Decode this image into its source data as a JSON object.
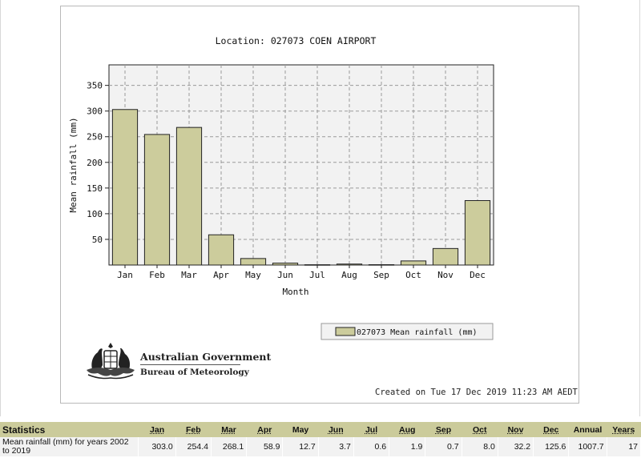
{
  "chart_data": {
    "type": "bar",
    "title": "Location: 027073 COEN AIRPORT",
    "xlabel": "Month",
    "ylabel": "Mean rainfall (mm)",
    "categories": [
      "Jan",
      "Feb",
      "Mar",
      "Apr",
      "May",
      "Jun",
      "Jul",
      "Aug",
      "Sep",
      "Oct",
      "Nov",
      "Dec"
    ],
    "series": [
      {
        "name": "027073 Mean rainfall (mm)",
        "values": [
          303.0,
          254.4,
          268.1,
          58.9,
          12.7,
          3.7,
          0.6,
          1.9,
          0.7,
          8.0,
          32.2,
          125.6
        ],
        "color": "#cccc9c"
      }
    ],
    "ylim": [
      0,
      390
    ],
    "yticks": [
      50,
      100,
      150,
      200,
      250,
      300,
      350
    ],
    "grid": true,
    "legend": "bottom-right",
    "plot_background": "#f2f2f2"
  },
  "logo": {
    "line1": "Australian Government",
    "line2": "Bureau of Meteorology",
    "emblem_icon": "coat-of-arms-icon"
  },
  "created": "Created on Tue 17 Dec 2019 11:23 AM AEDT",
  "stats": {
    "header": "Statistics",
    "columns": [
      "Jan",
      "Feb",
      "Mar",
      "Apr",
      "May",
      "Jun",
      "Jul",
      "Aug",
      "Sep",
      "Oct",
      "Nov",
      "Dec",
      "Annual",
      "Years"
    ],
    "row_label": "Mean rainfall (mm) for years 2002 to 2019",
    "row_values": [
      "303.0",
      "254.4",
      "268.1",
      "58.9",
      "12.7",
      "3.7",
      "0.6",
      "1.9",
      "0.7",
      "8.0",
      "32.2",
      "125.6",
      "1007.7",
      "17"
    ],
    "header_color": "#cbcb9b"
  }
}
